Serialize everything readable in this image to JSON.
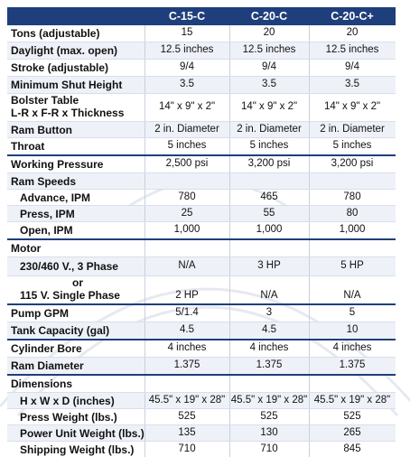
{
  "columns": [
    "C-15-C",
    "C-20-C",
    "C-20-C+"
  ],
  "groups": [
    {
      "rows": [
        {
          "label": "Tons (adjustable)",
          "values": [
            "15",
            "20",
            "20"
          ]
        },
        {
          "label": "Daylight (max. open)",
          "values": [
            "12.5 inches",
            "12.5 inches",
            "12.5 inches"
          ]
        },
        {
          "label": "Stroke (adjustable)",
          "values": [
            "9/4",
            "9/4",
            "9/4"
          ]
        },
        {
          "label": "Minimum Shut Height",
          "values": [
            "3.5",
            "3.5",
            "3.5"
          ]
        },
        {
          "label": "Bolster Table",
          "label2": "L-R x F-R x Thickness",
          "values": [
            "14\" x 9\" x 2\"",
            "14\" x 9\" x 2\"",
            "14\" x 9\" x 2\""
          ]
        },
        {
          "label": "Ram Button",
          "values": [
            "2 in. Diameter",
            "2 in. Diameter",
            "2 in. Diameter"
          ]
        },
        {
          "label": "Throat",
          "values": [
            "5 inches",
            "5 inches",
            "5 inches"
          ]
        }
      ]
    },
    {
      "rows": [
        {
          "label": "Working Pressure",
          "values": [
            "2,500 psi",
            "3,200 psi",
            "3,200 psi"
          ]
        },
        {
          "label": "Ram Speeds",
          "values": [
            "",
            "",
            ""
          ]
        },
        {
          "label": "Advance, IPM",
          "indent": 1,
          "values": [
            "780",
            "465",
            "780"
          ]
        },
        {
          "label": "Press, IPM",
          "indent": 1,
          "values": [
            "25",
            "55",
            "80"
          ]
        },
        {
          "label": "Open, IPM",
          "indent": 1,
          "values": [
            "1,000",
            "1,000",
            "1,000"
          ]
        }
      ]
    },
    {
      "rows": [
        {
          "label": "Motor",
          "values": [
            "",
            "",
            ""
          ]
        },
        {
          "label": "230/460 V., 3 Phase",
          "indent": 1,
          "values": [
            "N/A",
            "3 HP",
            "5 HP"
          ]
        },
        {
          "label": "or",
          "label2": "115 V. Single Phase",
          "indent": 1,
          "center_first": true,
          "values": [
            "2 HP",
            "N/A",
            "N/A"
          ]
        }
      ]
    },
    {
      "rows": [
        {
          "label": "Pump GPM",
          "values": [
            "5/1.4",
            "3",
            "5"
          ]
        },
        {
          "label": "Tank Capacity (gal)",
          "values": [
            "4.5",
            "4.5",
            "10"
          ]
        }
      ]
    },
    {
      "rows": [
        {
          "label": "Cylinder Bore",
          "values": [
            "4 inches",
            "4 inches",
            "4 inches"
          ]
        },
        {
          "label": "Ram Diameter",
          "values": [
            "1.375",
            "1.375",
            "1.375"
          ]
        }
      ]
    },
    {
      "rows": [
        {
          "label": "Dimensions",
          "values": [
            "",
            "",
            ""
          ]
        },
        {
          "label": "H x W x D (inches)",
          "indent": 1,
          "values": [
            "45.5\" x 19\" x 28\"",
            "45.5\" x 19\" x 28\"",
            "45.5\" x 19\" x 28\""
          ]
        },
        {
          "label": "Press Weight (lbs.)",
          "indent": 1,
          "values": [
            "525",
            "525",
            "525"
          ]
        },
        {
          "label": "Power Unit Weight (lbs.)",
          "indent": 1,
          "values": [
            "135",
            "130",
            "265"
          ]
        },
        {
          "label": "Shipping Weight (lbs.)",
          "indent": 1,
          "values": [
            "710",
            "710",
            "845"
          ]
        }
      ]
    }
  ]
}
